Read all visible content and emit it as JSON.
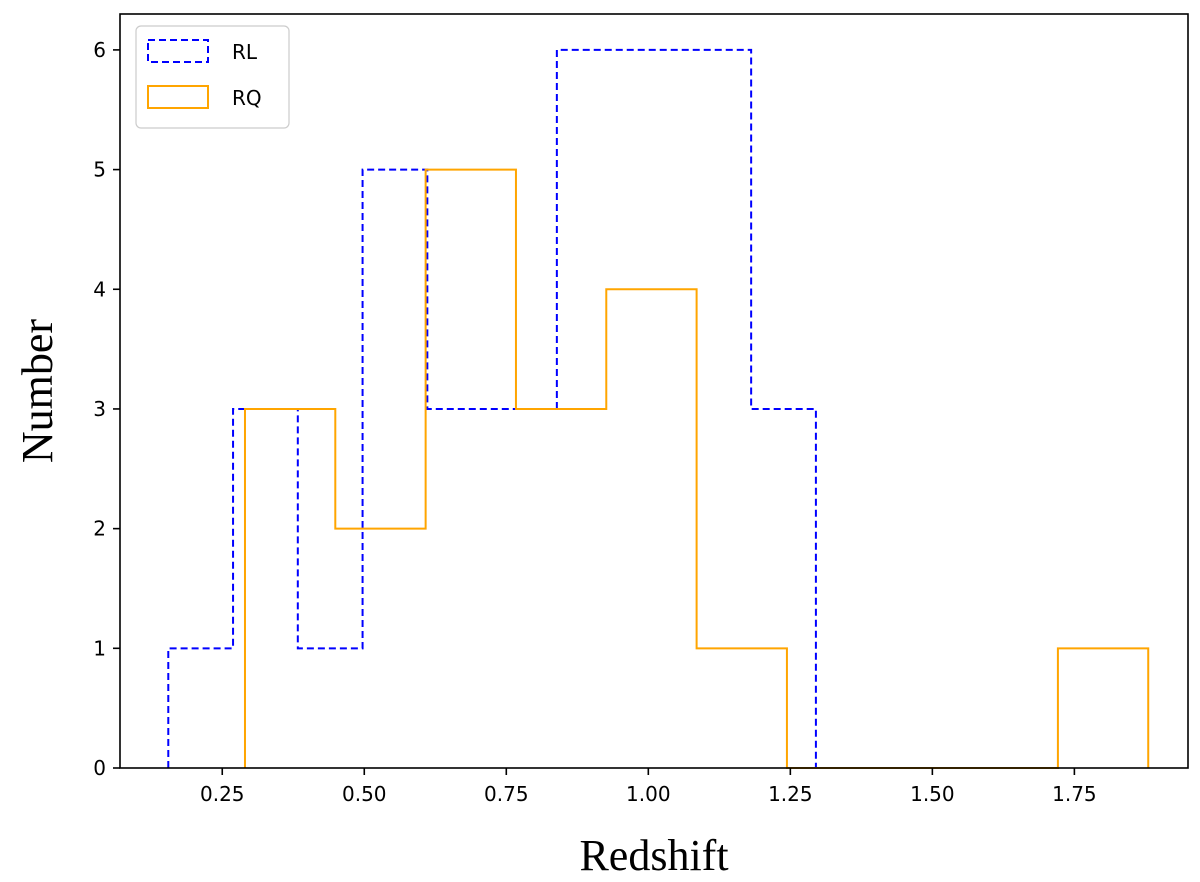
{
  "chart_data": {
    "type": "histogram",
    "xlabel": "Redshift",
    "ylabel": "Number",
    "xlim": [
      0.07,
      1.95
    ],
    "ylim": [
      0,
      6.3
    ],
    "xticks": [
      0.25,
      0.5,
      0.75,
      1.0,
      1.25,
      1.5,
      1.75
    ],
    "xtick_labels": [
      "0.25",
      "0.50",
      "0.75",
      "1.00",
      "1.25",
      "1.50",
      "1.75"
    ],
    "yticks": [
      0,
      1,
      2,
      3,
      4,
      5,
      6
    ],
    "ytick_labels": [
      "0",
      "1",
      "2",
      "3",
      "4",
      "5",
      "6"
    ],
    "grid": false,
    "legend_position": "top-left",
    "series": [
      {
        "name": "RL",
        "color": "#0000ff",
        "style": "dashed",
        "bin_edges": [
          0.155,
          0.269,
          0.383,
          0.497,
          0.611,
          0.725,
          0.839,
          0.953,
          1.067,
          1.181,
          1.295
        ],
        "counts": [
          1,
          3,
          1,
          5,
          3,
          3,
          6,
          6,
          6,
          3
        ]
      },
      {
        "name": "RQ",
        "color": "#ffa500",
        "style": "solid",
        "bin_edges": [
          0.29,
          0.449,
          0.608,
          0.767,
          0.926,
          1.085,
          1.244,
          1.403,
          1.562,
          1.721,
          1.88
        ],
        "counts": [
          3,
          2,
          5,
          3,
          4,
          1,
          0,
          0,
          0,
          1
        ]
      }
    ]
  }
}
